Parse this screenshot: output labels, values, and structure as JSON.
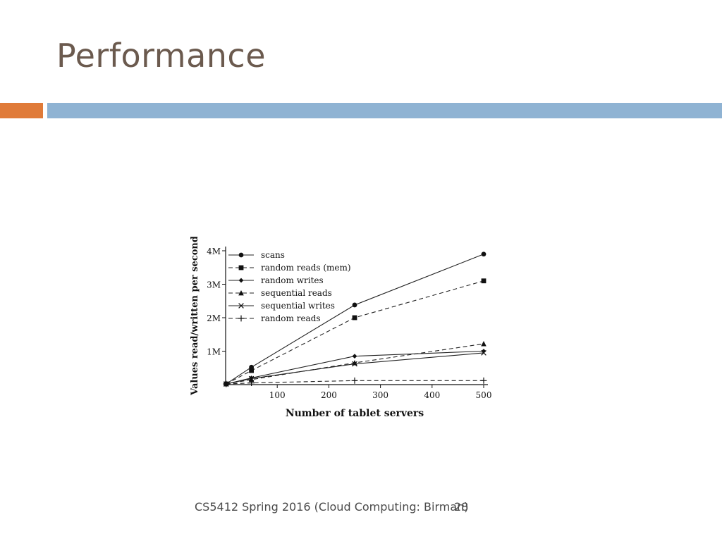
{
  "slide": {
    "title": "Performance",
    "footer": "CS5412 Spring 2016 (Cloud Computing: Birman)",
    "page_number": "28"
  },
  "colors": {
    "title": "#6b5a4e",
    "accent_bar": "#e07b39",
    "main_bar": "#8fb3d3"
  },
  "chart_data": {
    "type": "line",
    "title": "",
    "xlabel": "Number of tablet servers",
    "ylabel": "Values read/written per second",
    "xlim": [
      0,
      500
    ],
    "ylim": [
      0,
      4
    ],
    "x_ticks": [
      100,
      200,
      300,
      400,
      500
    ],
    "x_tick_labels": [
      "100",
      "200",
      "300",
      "400",
      "500"
    ],
    "y_ticks": [
      1,
      2,
      3,
      4
    ],
    "y_tick_labels": [
      "1M",
      "2M",
      "3M",
      "4M"
    ],
    "legend_position": "top-left",
    "x": [
      1,
      50,
      250,
      500
    ],
    "series": [
      {
        "name": "scans",
        "dash": "solid",
        "marker": "circle",
        "values": [
          0.02,
          0.52,
          2.38,
          3.9
        ]
      },
      {
        "name": "random reads (mem)",
        "dash": "dashed",
        "marker": "square",
        "values": [
          0.02,
          0.42,
          2.0,
          3.1
        ]
      },
      {
        "name": "random writes",
        "dash": "solid",
        "marker": "diamond",
        "values": [
          0.02,
          0.2,
          0.85,
          1.0
        ]
      },
      {
        "name": "sequential reads",
        "dash": "dashed",
        "marker": "triangle",
        "values": [
          0.02,
          0.15,
          0.65,
          1.22
        ]
      },
      {
        "name": "sequential writes",
        "dash": "solid",
        "marker": "x",
        "values": [
          0.02,
          0.18,
          0.62,
          0.95
        ]
      },
      {
        "name": "random reads",
        "dash": "dashed",
        "marker": "plus",
        "values": [
          0.02,
          0.05,
          0.12,
          0.12
        ]
      }
    ]
  }
}
